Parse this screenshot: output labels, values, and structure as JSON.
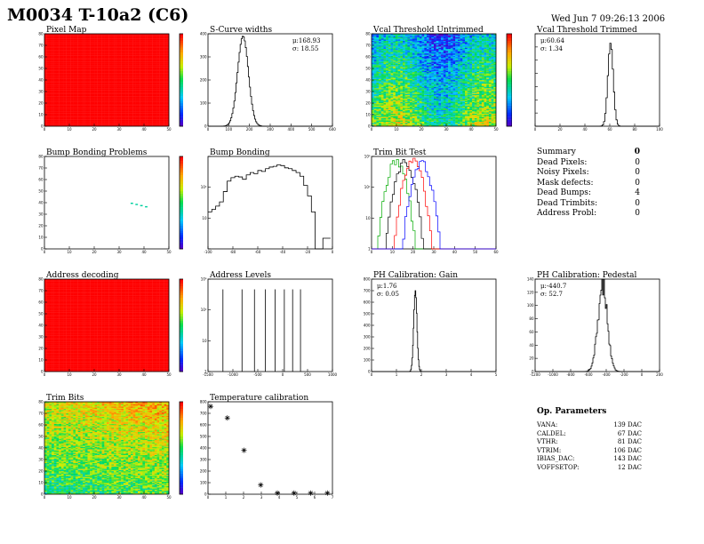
{
  "header": {
    "title": "M0034 T-10a2 (C6)",
    "timestamp": "Wed Jun  7 09:26:13 2006"
  },
  "colors": {
    "hist_line": "#000000",
    "trim_series": [
      "#00aa00",
      "#000000",
      "#ff0000",
      "#0000ff"
    ]
  },
  "panels": [
    {
      "id": "pixel-map",
      "title": "Pixel Map"
    },
    {
      "id": "s-curve-widths",
      "title": "S-Curve widths"
    },
    {
      "id": "vcal-untrimmed",
      "title": "Vcal Threshold Untrimmed"
    },
    {
      "id": "vcal-trimmed",
      "title": "Vcal Threshold Trimmed"
    },
    {
      "id": "bump-bonding-problems",
      "title": "Bump Bonding Problems"
    },
    {
      "id": "bump-bonding",
      "title": "Bump Bonding"
    },
    {
      "id": "trim-bit-test",
      "title": "Trim Bit Test"
    },
    {
      "id": "address-decoding",
      "title": "Address decoding"
    },
    {
      "id": "address-levels",
      "title": "Address Levels"
    },
    {
      "id": "ph-gain",
      "title": "PH Calibration: Gain"
    },
    {
      "id": "ph-pedestal",
      "title": "PH Calibration: Pedestal"
    },
    {
      "id": "trim-bits",
      "title": "Trim Bits"
    },
    {
      "id": "temperature-calibration",
      "title": "Temperature calibration"
    }
  ],
  "stats": {
    "s_curve": {
      "mu": "μ:168.93",
      "sigma": "σ: 18.55"
    },
    "vcal_trimmed": {
      "mu": "μ:60.64",
      "sigma": "σ: 1.34"
    },
    "ph_gain": {
      "mu": "μ:1.76",
      "sigma": "σ: 0.05"
    },
    "ph_pedestal": {
      "mu": "μ:-440.7",
      "sigma": "σ: 52.7"
    }
  },
  "summary": {
    "rows": [
      {
        "label": "Summary",
        "value": "0"
      },
      {
        "label": "Dead Pixels:",
        "value": "0"
      },
      {
        "label": "Noisy Pixels:",
        "value": "0"
      },
      {
        "label": "Mask defects:",
        "value": "0"
      },
      {
        "label": "Dead Bumps:",
        "value": "4"
      },
      {
        "label": "Dead Trimbits:",
        "value": "0"
      },
      {
        "label": "Address Probl:",
        "value": "0"
      }
    ]
  },
  "op_parameters": {
    "title": "Op. Parameters",
    "rows": [
      {
        "name": "VANA:",
        "value": "139 DAC"
      },
      {
        "name": "CALDEL:",
        "value": "67 DAC"
      },
      {
        "name": "VTHR:",
        "value": "81 DAC"
      },
      {
        "name": "VTRIM:",
        "value": "106 DAC"
      },
      {
        "name": "IBIAS_DAC:",
        "value": "143 DAC"
      },
      {
        "name": "VOFFSETOP:",
        "value": "12 DAC"
      }
    ]
  },
  "chart_data": [
    {
      "id": "pixel-map",
      "type": "heatmap",
      "xlim": [
        0,
        52
      ],
      "ylim": [
        0,
        80
      ],
      "xticks": [
        "0",
        "10",
        "20",
        "30",
        "40",
        "50"
      ],
      "yticks": [
        "0",
        "10",
        "20",
        "30",
        "40",
        "50",
        "60",
        "70",
        "80"
      ],
      "zticks": [
        "0",
        "10",
        "20",
        "30",
        "40",
        "50"
      ],
      "fill": "uniform-max"
    },
    {
      "id": "s-curve-widths",
      "type": "bar",
      "xlim": [
        0,
        600
      ],
      "ylim": [
        0,
        400
      ],
      "xticks": [
        "0",
        "100",
        "200",
        "300",
        "400",
        "500",
        "600"
      ],
      "yticks": [
        "0",
        "100",
        "200",
        "300",
        "400"
      ],
      "peak_x": 168.93,
      "sigma": 18.55,
      "peak_y": 390
    },
    {
      "id": "vcal-untrimmed",
      "type": "heatmap",
      "xlim": [
        0,
        52
      ],
      "ylim": [
        0,
        80
      ],
      "xticks": [
        "0",
        "10",
        "20",
        "30",
        "40",
        "50"
      ],
      "yticks": [
        "0",
        "10",
        "20",
        "30",
        "40",
        "50",
        "60",
        "70",
        "80"
      ],
      "zticks": [
        "80",
        "90",
        "100",
        "110",
        "120"
      ],
      "zlim": [
        75,
        125
      ]
    },
    {
      "id": "vcal-trimmed",
      "type": "bar",
      "xlim": [
        0,
        100
      ],
      "ylim": [
        0,
        1600
      ],
      "xticks": [
        "0",
        "20",
        "40",
        "60",
        "80",
        "100"
      ],
      "peak_x": 60.64,
      "sigma": 1.34,
      "peak_y": 1500
    },
    {
      "id": "bump-bonding-problems",
      "type": "heatmap",
      "xlim": [
        0,
        52
      ],
      "ylim": [
        0,
        80
      ],
      "xticks": [
        "0",
        "10",
        "20",
        "30",
        "40",
        "50"
      ],
      "yticks": [
        "0",
        "10",
        "20",
        "30",
        "40",
        "50",
        "60",
        "70",
        "80"
      ],
      "zticks": [
        "0",
        "0.1",
        "0.2",
        "0.3",
        "0.4",
        "0.5",
        "0.6",
        "0.7",
        "0.8",
        "0.9",
        "1.0"
      ],
      "points": [
        {
          "x": 36,
          "y": 39
        },
        {
          "x": 38,
          "y": 38
        },
        {
          "x": 40,
          "y": 37
        },
        {
          "x": 42,
          "y": 36
        }
      ]
    },
    {
      "id": "bump-bonding",
      "type": "bar",
      "log_y": true,
      "xlim": [
        -120,
        10
      ],
      "xticks": [
        "-100",
        "-80",
        "-60",
        "-40",
        "-20",
        "0"
      ],
      "yticks": [
        "10",
        "10²"
      ],
      "x": [
        -120,
        -116,
        -112,
        -108,
        -104,
        -100,
        -96,
        -92,
        -88,
        -84,
        -80,
        -76,
        -72,
        -68,
        -64,
        -60,
        -56,
        -52,
        -48,
        -44,
        -40,
        -36,
        -32,
        -28,
        -24,
        -20,
        -16,
        -12,
        -8,
        -4,
        0,
        4
      ],
      "values": [
        10,
        12,
        15,
        20,
        40,
        80,
        100,
        110,
        105,
        90,
        120,
        140,
        130,
        160,
        150,
        180,
        200,
        210,
        230,
        220,
        190,
        180,
        160,
        140,
        110,
        60,
        30,
        10,
        0,
        0,
        1,
        1
      ]
    },
    {
      "id": "trim-bit-test",
      "type": "line",
      "log_y": true,
      "xlim": [
        0,
        60
      ],
      "xticks": [
        "0",
        "10",
        "20",
        "30",
        "40",
        "50",
        "60"
      ],
      "yticks": [
        "1",
        "10",
        "10²",
        "10³"
      ],
      "series": [
        {
          "color": "#00aa00",
          "peak_x": 12,
          "peak_y": 1100
        },
        {
          "color": "#000000",
          "peak_x": 16,
          "peak_y": 1000
        },
        {
          "color": "#ff0000",
          "peak_x": 20,
          "peak_y": 1200
        },
        {
          "color": "#0000ff",
          "peak_x": 24,
          "peak_y": 1000
        }
      ]
    },
    {
      "id": "address-decoding",
      "type": "heatmap",
      "xlim": [
        0,
        52
      ],
      "ylim": [
        0,
        80
      ],
      "xticks": [
        "0",
        "10",
        "20",
        "30",
        "40",
        "50"
      ],
      "yticks": [
        "0",
        "10",
        "20",
        "30",
        "40",
        "50",
        "60",
        "70",
        "80"
      ],
      "zticks": [
        "0",
        "0.1",
        "0.2",
        "0.3",
        "0.4",
        "0.5",
        "0.6",
        "0.7",
        "0.8",
        "0.9",
        "1"
      ],
      "fill": "uniform-max"
    },
    {
      "id": "address-levels",
      "type": "bar",
      "log_y": true,
      "xlim": [
        -2000,
        1000
      ],
      "xticks": [
        "-1500",
        "-1000",
        "-500",
        "0",
        "500",
        "1000"
      ],
      "yticks": [
        "1",
        "10",
        "10²",
        "10³"
      ],
      "x": [
        -1640,
        -1180,
        -880,
        -620,
        -380,
        -160,
        40,
        230
      ],
      "values": [
        700,
        700,
        700,
        700,
        700,
        700,
        700,
        700
      ]
    },
    {
      "id": "ph-gain",
      "type": "bar",
      "xlim": [
        0,
        5
      ],
      "ylim": [
        0,
        800
      ],
      "xticks": [
        "0",
        "1",
        "2",
        "3",
        "4",
        "5"
      ],
      "yticks": [
        "0",
        "100",
        "200",
        "300",
        "400",
        "500",
        "600",
        "700",
        "800"
      ],
      "peak_x": 1.76,
      "sigma": 0.05,
      "peak_y": 700
    },
    {
      "id": "ph-pedestal",
      "type": "line",
      "xlim": [
        -1200,
        200
      ],
      "ylim": [
        0,
        140
      ],
      "xticks": [
        "-1200",
        "-1000",
        "-800",
        "-600",
        "-400",
        "-200",
        "0",
        "200"
      ],
      "yticks": [
        "0",
        "20",
        "40",
        "60",
        "80",
        "100",
        "120",
        "140"
      ],
      "peak_x": -440.7,
      "sigma": 52.7,
      "peak_y": 130
    },
    {
      "id": "trim-bits",
      "type": "heatmap",
      "xlim": [
        0,
        52
      ],
      "ylim": [
        0,
        80
      ],
      "xticks": [
        "0",
        "10",
        "20",
        "30",
        "40",
        "50"
      ],
      "yticks": [
        "0",
        "10",
        "20",
        "30",
        "40",
        "50",
        "60",
        "70",
        "80"
      ],
      "zticks": [
        "0",
        "2",
        "4",
        "6",
        "8",
        "10",
        "12",
        "14"
      ],
      "zlim": [
        0,
        15
      ]
    },
    {
      "id": "temperature-calibration",
      "type": "scatter",
      "xlim": [
        0,
        8
      ],
      "ylim": [
        0,
        800
      ],
      "xticks": [
        "0",
        "1",
        "2",
        "3",
        "4",
        "5",
        "6",
        "7"
      ],
      "yticks": [
        "0",
        "100",
        "200",
        "300",
        "400",
        "500",
        "600",
        "700",
        "800"
      ],
      "x": [
        0,
        1,
        2,
        3,
        4,
        5,
        6,
        7
      ],
      "values": [
        760,
        660,
        380,
        80,
        10,
        10,
        10,
        10
      ]
    }
  ]
}
